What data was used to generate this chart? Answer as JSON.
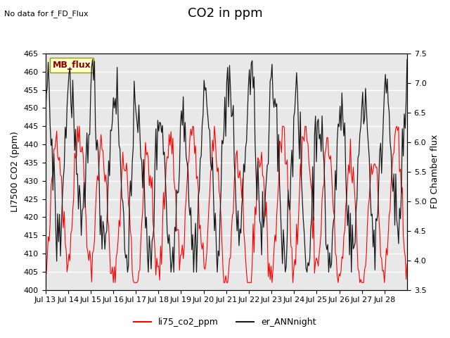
{
  "title": "CO2 in ppm",
  "top_left_text": "No data for f_FD_Flux",
  "annotation_box": "MB_flux",
  "ylabel_left": "LI7500 CO2 (ppm)",
  "ylabel_right": "FD Chamber flux",
  "ylim_left": [
    400,
    465
  ],
  "ylim_right": [
    3.5,
    7.5
  ],
  "yticks_left": [
    400,
    405,
    410,
    415,
    420,
    425,
    430,
    435,
    440,
    445,
    450,
    455,
    460,
    465
  ],
  "yticks_right": [
    3.5,
    4.0,
    4.5,
    5.0,
    5.5,
    6.0,
    6.5,
    7.0,
    7.5
  ],
  "xtick_labels": [
    "Jul 13",
    "Jul 14",
    "Jul 15",
    "Jul 16",
    "Jul 17",
    "Jul 18",
    "Jul 19",
    "Jul 20",
    "Jul 21",
    "Jul 22",
    "Jul 23",
    "Jul 24",
    "Jul 25",
    "Jul 26",
    "Jul 27",
    "Jul 28"
  ],
  "color_red": "#ff0000",
  "color_black": "#1a1a1a",
  "legend_labels": [
    "li75_co2_ppm",
    "er_ANNnight"
  ],
  "plot_bg_color": "#e8e8e8",
  "grid_color": "#ffffff",
  "annotation_bg": "#ffffcc",
  "annotation_border": "#999900",
  "title_fontsize": 13,
  "label_fontsize": 9,
  "tick_fontsize": 8,
  "n_days": 16,
  "n_per_day": 24
}
